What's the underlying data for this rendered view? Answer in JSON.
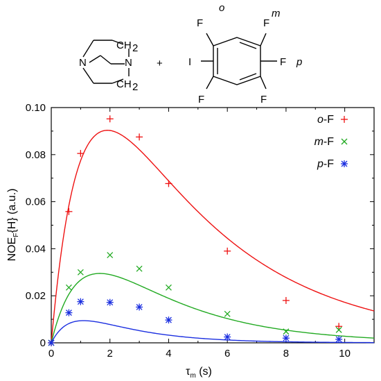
{
  "scheme": {
    "amine_labels": [
      "N",
      "N",
      "CH",
      "2",
      "CH",
      "2"
    ],
    "plus": "+",
    "iodide_labels": [
      "I",
      "F",
      "F",
      "F",
      "F",
      "F"
    ],
    "position_labels": [
      "o",
      "m",
      "p"
    ]
  },
  "chart_data": {
    "type": "scatter",
    "title": "",
    "xlabel": {
      "main": "τ",
      "sub": "m",
      "rest": " (s)"
    },
    "ylabel": {
      "pre": "NOE",
      "sub": "F",
      "post": "{H} (a.u.)"
    },
    "xlim": [
      0,
      11
    ],
    "ylim": [
      0,
      0.1
    ],
    "xticks": [
      "0",
      "2",
      "4",
      "6",
      "8",
      "10"
    ],
    "yticks": [
      "0",
      "0.02",
      "0.04",
      "0.06",
      "0.08",
      "0.10"
    ],
    "grid": false,
    "legend_position": "top-right",
    "series": [
      {
        "name": "o-F",
        "name_italic": "o",
        "name_rest": "-F",
        "marker": "plus",
        "color": "#ee1111",
        "points": [
          [
            0,
            0
          ],
          [
            0.6,
            0.0558
          ],
          [
            1.0,
            0.0805
          ],
          [
            2.0,
            0.0952
          ],
          [
            3.0,
            0.0875
          ],
          [
            4.0,
            0.0677
          ],
          [
            6.0,
            0.039
          ],
          [
            8.0,
            0.018
          ],
          [
            9.8,
            0.007
          ]
        ],
        "fit": {
          "A": 0.19,
          "k1": 0.24,
          "k2": 0.97
        }
      },
      {
        "name": "m-F",
        "name_italic": "m",
        "name_rest": "-F",
        "marker": "cross",
        "color": "#22aa22",
        "points": [
          [
            0,
            0
          ],
          [
            0.6,
            0.0235
          ],
          [
            1.0,
            0.03
          ],
          [
            2.0,
            0.0373
          ],
          [
            3.0,
            0.0315
          ],
          [
            4.0,
            0.0235
          ],
          [
            6.0,
            0.0123
          ],
          [
            8.0,
            0.0048
          ],
          [
            9.8,
            0.0055
          ]
        ],
        "fit": {
          "A": 0.076,
          "k1": 0.33,
          "k2": 1.0
        }
      },
      {
        "name": "p-F",
        "name_italic": "p",
        "name_rest": "-F",
        "marker": "star",
        "color": "#1a2ee0",
        "points": [
          [
            0,
            0
          ],
          [
            0.6,
            0.0128
          ],
          [
            1.0,
            0.0175
          ],
          [
            2.0,
            0.0172
          ],
          [
            3.0,
            0.0152
          ],
          [
            4.0,
            0.0097
          ],
          [
            6.0,
            0.0025
          ],
          [
            8.0,
            0.002
          ],
          [
            9.8,
            0.0015
          ]
        ],
        "fit": {
          "A": 0.0245,
          "k1": 0.5,
          "k2": 1.5
        }
      }
    ]
  }
}
